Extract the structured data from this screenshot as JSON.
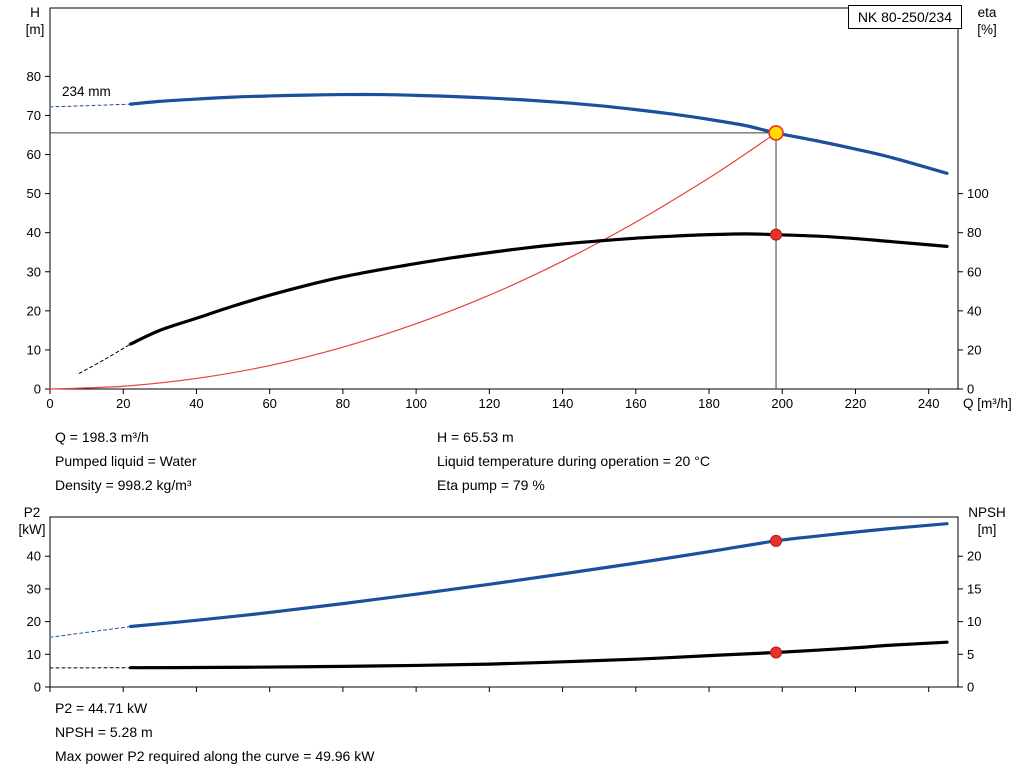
{
  "chart_data": [
    {
      "id": "top",
      "type": "line",
      "title": "NK 80-250/234",
      "annotation": "234 mm",
      "axis_labels": {
        "left": "H",
        "left_unit": "[m]",
        "right": "eta",
        "right_unit": "[%]",
        "x": "Q [m³/h]"
      },
      "xlim": [
        0,
        248
      ],
      "ylim": [
        0,
        97.5
      ],
      "y2lim": [
        0,
        195
      ],
      "x_ticks": [
        0,
        20,
        40,
        60,
        80,
        100,
        120,
        140,
        160,
        180,
        200,
        220,
        240
      ],
      "x_tick_labels": true,
      "y_ticks": [
        0,
        10,
        20,
        30,
        40,
        50,
        60,
        70,
        80
      ],
      "y2_ticks": [
        0,
        20,
        40,
        60,
        80,
        100
      ],
      "y2_to_y": 0.5,
      "grid": false,
      "series": [
        {
          "name": "duty-horizontal-line",
          "color": "#3c3c3c",
          "width": 1,
          "smooth": false,
          "points": [
            [
              0,
              65.53
            ],
            [
              198.3,
              65.53
            ]
          ]
        },
        {
          "name": "duty-vertical-line",
          "color": "#3c3c3c",
          "width": 1,
          "smooth": false,
          "points": [
            [
              198.3,
              0
            ],
            [
              198.3,
              65.53
            ]
          ]
        },
        {
          "name": "system-curve",
          "color": "#e8413a",
          "width": 1.2,
          "points": [
            [
              0,
              0
            ],
            [
              20,
              0.7
            ],
            [
              40,
              2.7
            ],
            [
              60,
              6
            ],
            [
              80,
              10.7
            ],
            [
              100,
              16.7
            ],
            [
              120,
              24
            ],
            [
              140,
              32.7
            ],
            [
              160,
              42.7
            ],
            [
              180,
              54
            ],
            [
              190,
              60.2
            ],
            [
              198.3,
              65.53
            ]
          ]
        },
        {
          "name": "head-curve-extrapolated",
          "color": "#1c4f9c",
          "width": 1,
          "dash": "3 3",
          "points": [
            [
              0,
              72.2
            ],
            [
              10,
              72.5
            ],
            [
              22,
              72.9
            ]
          ]
        },
        {
          "name": "head-curve-234mm",
          "color": "#1c4f9c",
          "width": 3.2,
          "points": [
            [
              22,
              72.9
            ],
            [
              30,
              73.6
            ],
            [
              40,
              74.2
            ],
            [
              50,
              74.7
            ],
            [
              60,
              75
            ],
            [
              70,
              75.2
            ],
            [
              80,
              75.35
            ],
            [
              90,
              75.35
            ],
            [
              100,
              75.15
            ],
            [
              110,
              74.85
            ],
            [
              120,
              74.45
            ],
            [
              130,
              73.95
            ],
            [
              140,
              73.3
            ],
            [
              150,
              72.5
            ],
            [
              160,
              71.5
            ],
            [
              170,
              70.35
            ],
            [
              180,
              69
            ],
            [
              190,
              67.4
            ],
            [
              198.3,
              65.53
            ],
            [
              210,
              63.4
            ],
            [
              220,
              61.4
            ],
            [
              230,
              59.2
            ],
            [
              245,
              55.2
            ]
          ]
        },
        {
          "name": "efficiency-curve-extrapolated",
          "color": "#000000",
          "width": 1,
          "dash": "3 3",
          "axis": "right",
          "points": [
            [
              8,
              8
            ],
            [
              15,
              15.2
            ],
            [
              22,
              23
            ]
          ]
        },
        {
          "name": "efficiency-curve",
          "color": "#000000",
          "width": 3.2,
          "axis": "right",
          "points": [
            [
              22,
              23
            ],
            [
              30,
              30
            ],
            [
              40,
              36.2
            ],
            [
              50,
              42.4
            ],
            [
              60,
              48
            ],
            [
              70,
              53
            ],
            [
              80,
              57.4
            ],
            [
              90,
              61
            ],
            [
              100,
              64.2
            ],
            [
              110,
              67.2
            ],
            [
              120,
              69.8
            ],
            [
              130,
              72.2
            ],
            [
              140,
              74.2
            ],
            [
              150,
              75.8
            ],
            [
              160,
              77.2
            ],
            [
              170,
              78.2
            ],
            [
              180,
              79
            ],
            [
              190,
              79.4
            ],
            [
              198.3,
              79
            ],
            [
              210,
              78.2
            ],
            [
              220,
              77
            ],
            [
              230,
              75.4
            ],
            [
              245,
              73
            ]
          ]
        }
      ],
      "markers": [
        {
          "name": "duty-point-head",
          "x": 198.3,
          "y": 65.53,
          "r": 7,
          "fill": "#ffdd00",
          "stroke": "#e8332a",
          "stroke_width": 1.6
        },
        {
          "name": "duty-point-efficiency",
          "x": 198.3,
          "y": 79,
          "axis": "right",
          "r": 5.5,
          "fill": "#e8332a",
          "stroke": "#b5170f",
          "stroke_width": 1
        }
      ]
    },
    {
      "id": "bottom",
      "type": "line",
      "axis_labels": {
        "left": "P2",
        "left_unit": "[kW]",
        "right": "NPSH",
        "right_unit": "[m]"
      },
      "xlim": [
        0,
        248
      ],
      "ylim": [
        0,
        52
      ],
      "y2lim": [
        0,
        26
      ],
      "x_ticks": [
        0,
        20,
        40,
        60,
        80,
        100,
        120,
        140,
        160,
        180,
        200,
        220,
        240
      ],
      "x_tick_labels": false,
      "y_ticks": [
        0,
        10,
        20,
        30,
        40
      ],
      "y2_ticks": [
        0,
        5,
        10,
        15,
        20
      ],
      "y2_to_y": 2,
      "grid": false,
      "series": [
        {
          "name": "p2-curve-extrapolated",
          "color": "#1c4f9c",
          "width": 1,
          "dash": "3 3",
          "points": [
            [
              0,
              15.2
            ],
            [
              10,
              16.7
            ],
            [
              22,
              18.5
            ]
          ]
        },
        {
          "name": "p2-curve",
          "color": "#1c4f9c",
          "width": 3.2,
          "points": [
            [
              22,
              18.5
            ],
            [
              40,
              20.4
            ],
            [
              60,
              22.8
            ],
            [
              80,
              25.5
            ],
            [
              100,
              28.4
            ],
            [
              120,
              31.4
            ],
            [
              140,
              34.6
            ],
            [
              160,
              37.9
            ],
            [
              180,
              41.4
            ],
            [
              198.3,
              44.71
            ],
            [
              210,
              46.2
            ],
            [
              220,
              47.4
            ],
            [
              230,
              48.5
            ],
            [
              245,
              49.96
            ]
          ]
        },
        {
          "name": "npsh-curve-extrapolated",
          "color": "#000000",
          "width": 1,
          "dash": "3 3",
          "axis": "right",
          "points": [
            [
              0,
              2.93
            ],
            [
              10,
              2.93
            ],
            [
              22,
              2.95
            ]
          ]
        },
        {
          "name": "npsh-curve",
          "color": "#000000",
          "width": 3.2,
          "axis": "right",
          "points": [
            [
              22,
              2.95
            ],
            [
              40,
              2.98
            ],
            [
              60,
              3.05
            ],
            [
              80,
              3.15
            ],
            [
              100,
              3.3
            ],
            [
              120,
              3.5
            ],
            [
              140,
              3.85
            ],
            [
              160,
              4.25
            ],
            [
              180,
              4.8
            ],
            [
              198.3,
              5.28
            ],
            [
              210,
              5.65
            ],
            [
              220,
              6
            ],
            [
              230,
              6.4
            ],
            [
              245,
              6.85
            ]
          ]
        }
      ],
      "markers": [
        {
          "name": "duty-point-p2",
          "x": 198.3,
          "y": 44.71,
          "r": 5.5,
          "fill": "#e8332a",
          "stroke": "#b5170f",
          "stroke_width": 1
        },
        {
          "name": "duty-point-npsh",
          "x": 198.3,
          "y": 5.28,
          "axis": "right",
          "r": 5.5,
          "fill": "#e8332a",
          "stroke": "#b5170f",
          "stroke_width": 1
        }
      ]
    }
  ],
  "info_top": {
    "left": [
      "Q = 198.3 m³/h",
      "Pumped liquid = Water",
      "Density = 998.2 kg/m³"
    ],
    "right": [
      "H = 65.53 m",
      "Liquid temperature during operation = 20 °C",
      "Eta pump = 79 %"
    ]
  },
  "info_bottom": [
    "P2 = 44.71 kW",
    "NPSH = 5.28 m",
    "Max power P2 required along the curve = 49.96 kW"
  ]
}
